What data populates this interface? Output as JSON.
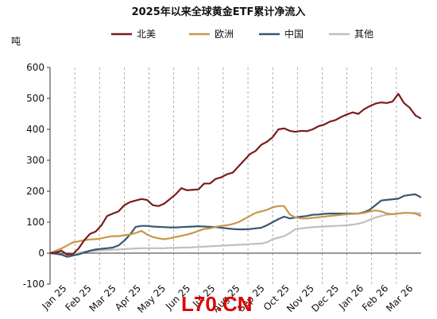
{
  "chart_data": {
    "type": "line",
    "title": "2025年以来全球黄金ETF累计净流入",
    "ylabel": "吨",
    "ylim": [
      -100,
      600
    ],
    "yticks": [
      -100,
      0,
      100,
      200,
      300,
      400,
      500,
      600
    ],
    "xlabels": [
      "Jan 25",
      "Feb 25",
      "Mar 25",
      "Apr 25",
      "May 25",
      "Jun 25",
      "Jul 25",
      "Aug 25",
      "Sep 25",
      "Oct 25",
      "Nov 25",
      "Dec 25",
      "Jan 26",
      "Feb 26",
      "Mar 26"
    ],
    "grid": "vertical-dashed",
    "legend": "top",
    "watermark": "L70.CN",
    "series": [
      {
        "name": "北美",
        "color": "#7b1c1c",
        "values": [
          0,
          2,
          8,
          -5,
          -3,
          15,
          42,
          62,
          70,
          90,
          120,
          128,
          135,
          155,
          165,
          170,
          175,
          172,
          155,
          152,
          160,
          175,
          190,
          210,
          203,
          205,
          206,
          225,
          225,
          240,
          245,
          255,
          260,
          280,
          300,
          320,
          330,
          350,
          360,
          375,
          400,
          403,
          395,
          392,
          395,
          394,
          400,
          410,
          415,
          425,
          430,
          440,
          448,
          455,
          450,
          465,
          475,
          483,
          487,
          485,
          490,
          515,
          485,
          470,
          445,
          435
        ]
      },
      {
        "name": "欧洲",
        "color": "#c8964a",
        "values": [
          0,
          8,
          15,
          25,
          35,
          38,
          42,
          44,
          45,
          48,
          52,
          55,
          55,
          58,
          60,
          65,
          72,
          60,
          52,
          48,
          45,
          48,
          52,
          56,
          60,
          65,
          72,
          78,
          80,
          85,
          88,
          90,
          94,
          100,
          110,
          120,
          130,
          135,
          140,
          148,
          152,
          152,
          125,
          115,
          112,
          112,
          114,
          116,
          118,
          120,
          122,
          124,
          126,
          127,
          128,
          130,
          135,
          138,
          135,
          128,
          126,
          128,
          130,
          130,
          128,
          120
        ]
      },
      {
        "name": "中国",
        "color": "#3a5575",
        "values": [
          0,
          -2,
          -5,
          -12,
          -8,
          -4,
          2,
          8,
          12,
          14,
          16,
          18,
          25,
          40,
          60,
          85,
          88,
          88,
          86,
          85,
          84,
          83,
          83,
          84,
          85,
          86,
          87,
          86,
          85,
          84,
          82,
          80,
          78,
          77,
          77,
          78,
          80,
          82,
          90,
          100,
          110,
          118,
          112,
          115,
          118,
          120,
          124,
          125,
          127,
          128,
          128,
          128,
          128,
          128,
          128,
          132,
          140,
          155,
          170,
          172,
          174,
          176,
          185,
          188,
          190,
          180
        ]
      },
      {
        "name": "其他",
        "color": "#bfbfbf",
        "values": [
          0,
          -2,
          -4,
          -5,
          -2,
          1,
          4,
          6,
          8,
          9,
          10,
          11,
          12,
          13,
          14,
          15,
          16,
          16,
          16,
          16,
          16,
          17,
          17,
          18,
          18,
          19,
          20,
          21,
          22,
          23,
          24,
          25,
          26,
          27,
          28,
          29,
          30,
          31,
          35,
          45,
          50,
          55,
          65,
          78,
          80,
          82,
          84,
          85,
          86,
          87,
          88,
          89,
          90,
          92,
          95,
          100,
          108,
          115,
          120,
          124,
          126,
          128,
          130,
          130,
          130,
          128
        ]
      }
    ]
  }
}
